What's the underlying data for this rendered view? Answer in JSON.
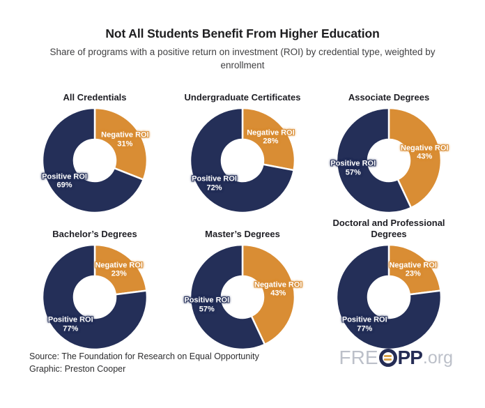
{
  "header": {
    "title": "Not All Students Benefit From Higher Education",
    "subtitle": "Share of programs with a positive return on investment (ROI) by credential type, weighted by enrollment"
  },
  "chart_data": {
    "type": "pie",
    "subtype": "donut",
    "legend_position": "none",
    "series_labels": {
      "positive": "Positive ROI",
      "negative": "Negative ROI"
    },
    "colors": {
      "positive": "#242f58",
      "negative": "#d98d34"
    },
    "charts": [
      {
        "title": "All Credentials",
        "positive": 69,
        "negative": 31
      },
      {
        "title": "Undergraduate Certificates",
        "positive": 72,
        "negative": 28
      },
      {
        "title": "Associate Degrees",
        "positive": 57,
        "negative": 43
      },
      {
        "title": "Bachelor’s Degrees",
        "positive": 77,
        "negative": 23
      },
      {
        "title": "Master’s Degrees",
        "positive": 57,
        "negative": 43
      },
      {
        "title": "Doctoral and Professional Degrees",
        "positive": 77,
        "negative": 23
      }
    ]
  },
  "footer": {
    "source": "Source: The Foundation for Research on Equal Opportunity",
    "credit": "Graphic: Preston Cooper",
    "logo": {
      "pre": "FRE",
      "post": "PP",
      "suffix": ".org"
    }
  }
}
